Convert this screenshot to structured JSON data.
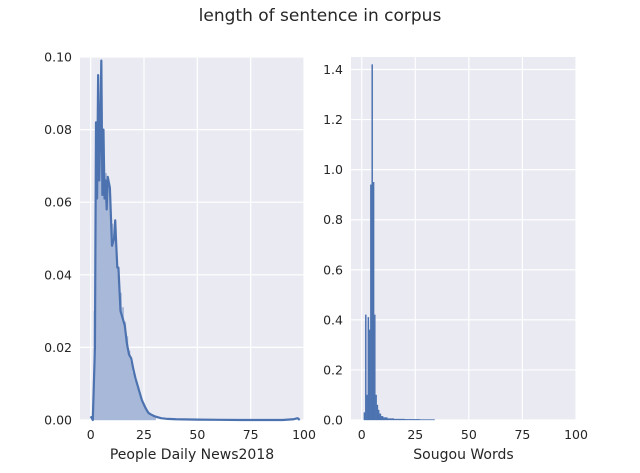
{
  "figure": {
    "title": "length of sentence in corpus"
  },
  "chart_data": [
    {
      "type": "area",
      "xlabel": "People Daily News2018",
      "ylabel": "",
      "xlim": [
        -5,
        100
      ],
      "ylim": [
        0,
        0.1
      ],
      "xticks": [
        0,
        25,
        50,
        75,
        100
      ],
      "yticks": [
        0.0,
        0.02,
        0.04,
        0.06,
        0.08,
        0.1
      ],
      "grid": true,
      "colors": {
        "kde": "#4c72b0",
        "hist": "#a8b8d8",
        "background": "#eaeaf2"
      },
      "kde": {
        "x": [
          0,
          1,
          2,
          2.5,
          3,
          3.5,
          4,
          4.5,
          5,
          5.5,
          6,
          6.5,
          7,
          7.5,
          8,
          9,
          10,
          11,
          11.5,
          12,
          12.5,
          13,
          14,
          15,
          16,
          17,
          18,
          19,
          20,
          21,
          22,
          23,
          24,
          25,
          26,
          27,
          28,
          30,
          33,
          36,
          40,
          50,
          60,
          70,
          80,
          90,
          95,
          97,
          98
        ],
        "y": [
          0.001,
          0.0,
          0.02,
          0.082,
          0.061,
          0.095,
          0.066,
          0.08,
          0.099,
          0.062,
          0.08,
          0.061,
          0.066,
          0.058,
          0.067,
          0.064,
          0.048,
          0.05,
          0.055,
          0.048,
          0.042,
          0.042,
          0.03,
          0.028,
          0.026,
          0.021,
          0.018,
          0.017,
          0.014,
          0.0115,
          0.0095,
          0.0075,
          0.0055,
          0.0042,
          0.003,
          0.002,
          0.0016,
          0.001,
          0.0005,
          0.0003,
          0.0002,
          0.0001,
          5e-05,
          0.0,
          0.0,
          0.0,
          0.0002,
          0.0005,
          0.0
        ]
      },
      "hist": {
        "x": [
          1,
          2,
          3,
          4,
          5,
          6,
          7,
          8,
          9,
          10,
          11,
          12,
          13,
          14,
          15,
          16,
          17,
          18,
          19,
          20,
          21,
          22,
          23,
          24,
          25,
          26,
          27,
          28,
          29,
          30
        ],
        "y": [
          0.001,
          0.03,
          0.07,
          0.085,
          0.089,
          0.072,
          0.068,
          0.066,
          0.062,
          0.054,
          0.051,
          0.046,
          0.04,
          0.035,
          0.031,
          0.027,
          0.023,
          0.019,
          0.016,
          0.013,
          0.011,
          0.009,
          0.007,
          0.0055,
          0.004,
          0.003,
          0.0022,
          0.0015,
          0.001,
          0.0007
        ]
      }
    },
    {
      "type": "bar",
      "xlabel": "Sougou Words",
      "ylabel": "",
      "xlim": [
        -5,
        100
      ],
      "ylim": [
        0,
        1.45
      ],
      "xticks": [
        0,
        25,
        50,
        75,
        100
      ],
      "yticks": [
        0.0,
        0.2,
        0.4,
        0.6,
        0.8,
        1.0,
        1.2,
        1.4
      ],
      "grid": true,
      "colors": {
        "bars": "#4c72b0",
        "background": "#eaeaf2"
      },
      "bars": [
        {
          "x0": 1.0,
          "x1": 1.6,
          "value": 0.03
        },
        {
          "x0": 1.6,
          "x1": 2.2,
          "value": 0.42
        },
        {
          "x0": 2.2,
          "x1": 2.8,
          "value": 0.1
        },
        {
          "x0": 2.8,
          "x1": 3.4,
          "value": 0.41
        },
        {
          "x0": 3.4,
          "x1": 4.0,
          "value": 0.36
        },
        {
          "x0": 4.0,
          "x1": 4.6,
          "value": 0.94
        },
        {
          "x0": 4.6,
          "x1": 5.2,
          "value": 1.42
        },
        {
          "x0": 5.2,
          "x1": 5.8,
          "value": 0.95
        },
        {
          "x0": 5.8,
          "x1": 6.4,
          "value": 0.42
        },
        {
          "x0": 6.4,
          "x1": 7.0,
          "value": 0.1
        },
        {
          "x0": 7.0,
          "x1": 7.6,
          "value": 0.06
        },
        {
          "x0": 7.6,
          "x1": 8.2,
          "value": 0.04
        },
        {
          "x0": 8.2,
          "x1": 9.0,
          "value": 0.025
        },
        {
          "x0": 9.0,
          "x1": 10.0,
          "value": 0.015
        },
        {
          "x0": 10.0,
          "x1": 12.0,
          "value": 0.01
        },
        {
          "x0": 12.0,
          "x1": 15.0,
          "value": 0.006
        },
        {
          "x0": 15.0,
          "x1": 20.0,
          "value": 0.004
        },
        {
          "x0": 20.0,
          "x1": 27.0,
          "value": 0.003
        },
        {
          "x0": 27.0,
          "x1": 34.0,
          "value": 0.002
        }
      ]
    }
  ]
}
